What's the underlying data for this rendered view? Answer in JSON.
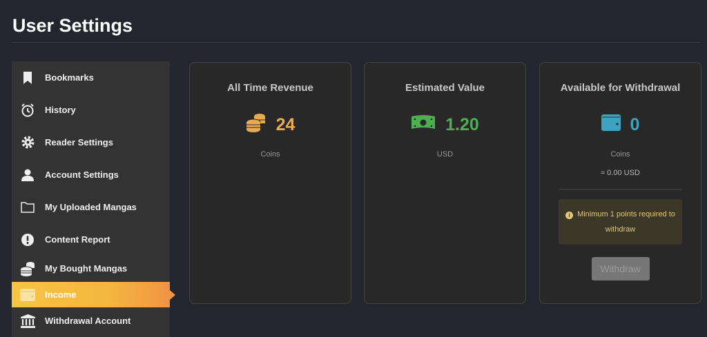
{
  "header": {
    "title": "User Settings"
  },
  "sidebar": {
    "items": [
      {
        "label": "Bookmarks",
        "icon": "bookmark-icon"
      },
      {
        "label": "History",
        "icon": "alarm-clock-icon"
      },
      {
        "label": "Reader Settings",
        "icon": "gear-icon"
      },
      {
        "label": "Account Settings",
        "icon": "user-icon"
      },
      {
        "label": "My Uploaded Mangas",
        "icon": "folder-icon"
      },
      {
        "label": "Content Report",
        "icon": "exclamation-circle-icon"
      },
      {
        "label": "My Bought Mangas",
        "icon": "coins-icon"
      },
      {
        "label": "Income",
        "icon": "wallet-icon",
        "active": true
      },
      {
        "label": "Withdrawal Account",
        "icon": "bank-icon"
      }
    ]
  },
  "cards": {
    "revenue": {
      "title": "All Time Revenue",
      "value": "24",
      "unit": "Coins",
      "color": "#e8ac4e"
    },
    "estimated": {
      "title": "Estimated Value",
      "value": "1.20",
      "unit": "USD",
      "color": "#4caf50"
    },
    "withdrawal": {
      "title": "Available for Withdrawal",
      "value": "0",
      "unit": "Coins",
      "approx": "≈ 0.00 USD",
      "notice": "Minimum 1 points required to withdraw",
      "button": "Withdraw",
      "color": "#3fa3c0"
    }
  }
}
